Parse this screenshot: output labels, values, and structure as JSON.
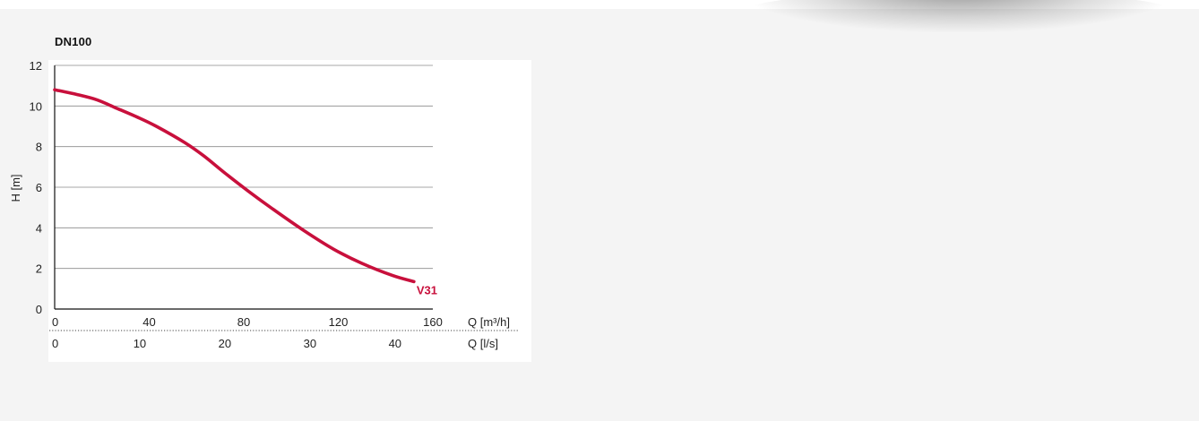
{
  "chart_data": {
    "type": "line",
    "title": "DN100",
    "ylabel": "H [m]",
    "xlabel_primary": "Q [m³/h]",
    "xlabel_secondary": "Q [l/s]",
    "ylim": [
      0,
      12
    ],
    "xlim": [
      0,
      160
    ],
    "yticks": [
      0,
      2,
      4,
      6,
      8,
      10,
      12
    ],
    "xticks_primary": [
      0,
      40,
      80,
      120,
      160
    ],
    "xticks_secondary": [
      0,
      10,
      20,
      30,
      40
    ],
    "grid": true,
    "series": [
      {
        "name": "V31",
        "color": "#c8103c",
        "x": [
          0,
          10,
          18,
          25,
          35,
          43,
          55,
          63,
          72,
          82,
          92,
          105,
          118,
          130,
          143,
          152
        ],
        "y": [
          10.8,
          10.55,
          10.3,
          9.95,
          9.45,
          9.0,
          8.2,
          7.55,
          6.7,
          5.8,
          4.95,
          3.9,
          2.95,
          2.25,
          1.65,
          1.35
        ]
      }
    ]
  }
}
